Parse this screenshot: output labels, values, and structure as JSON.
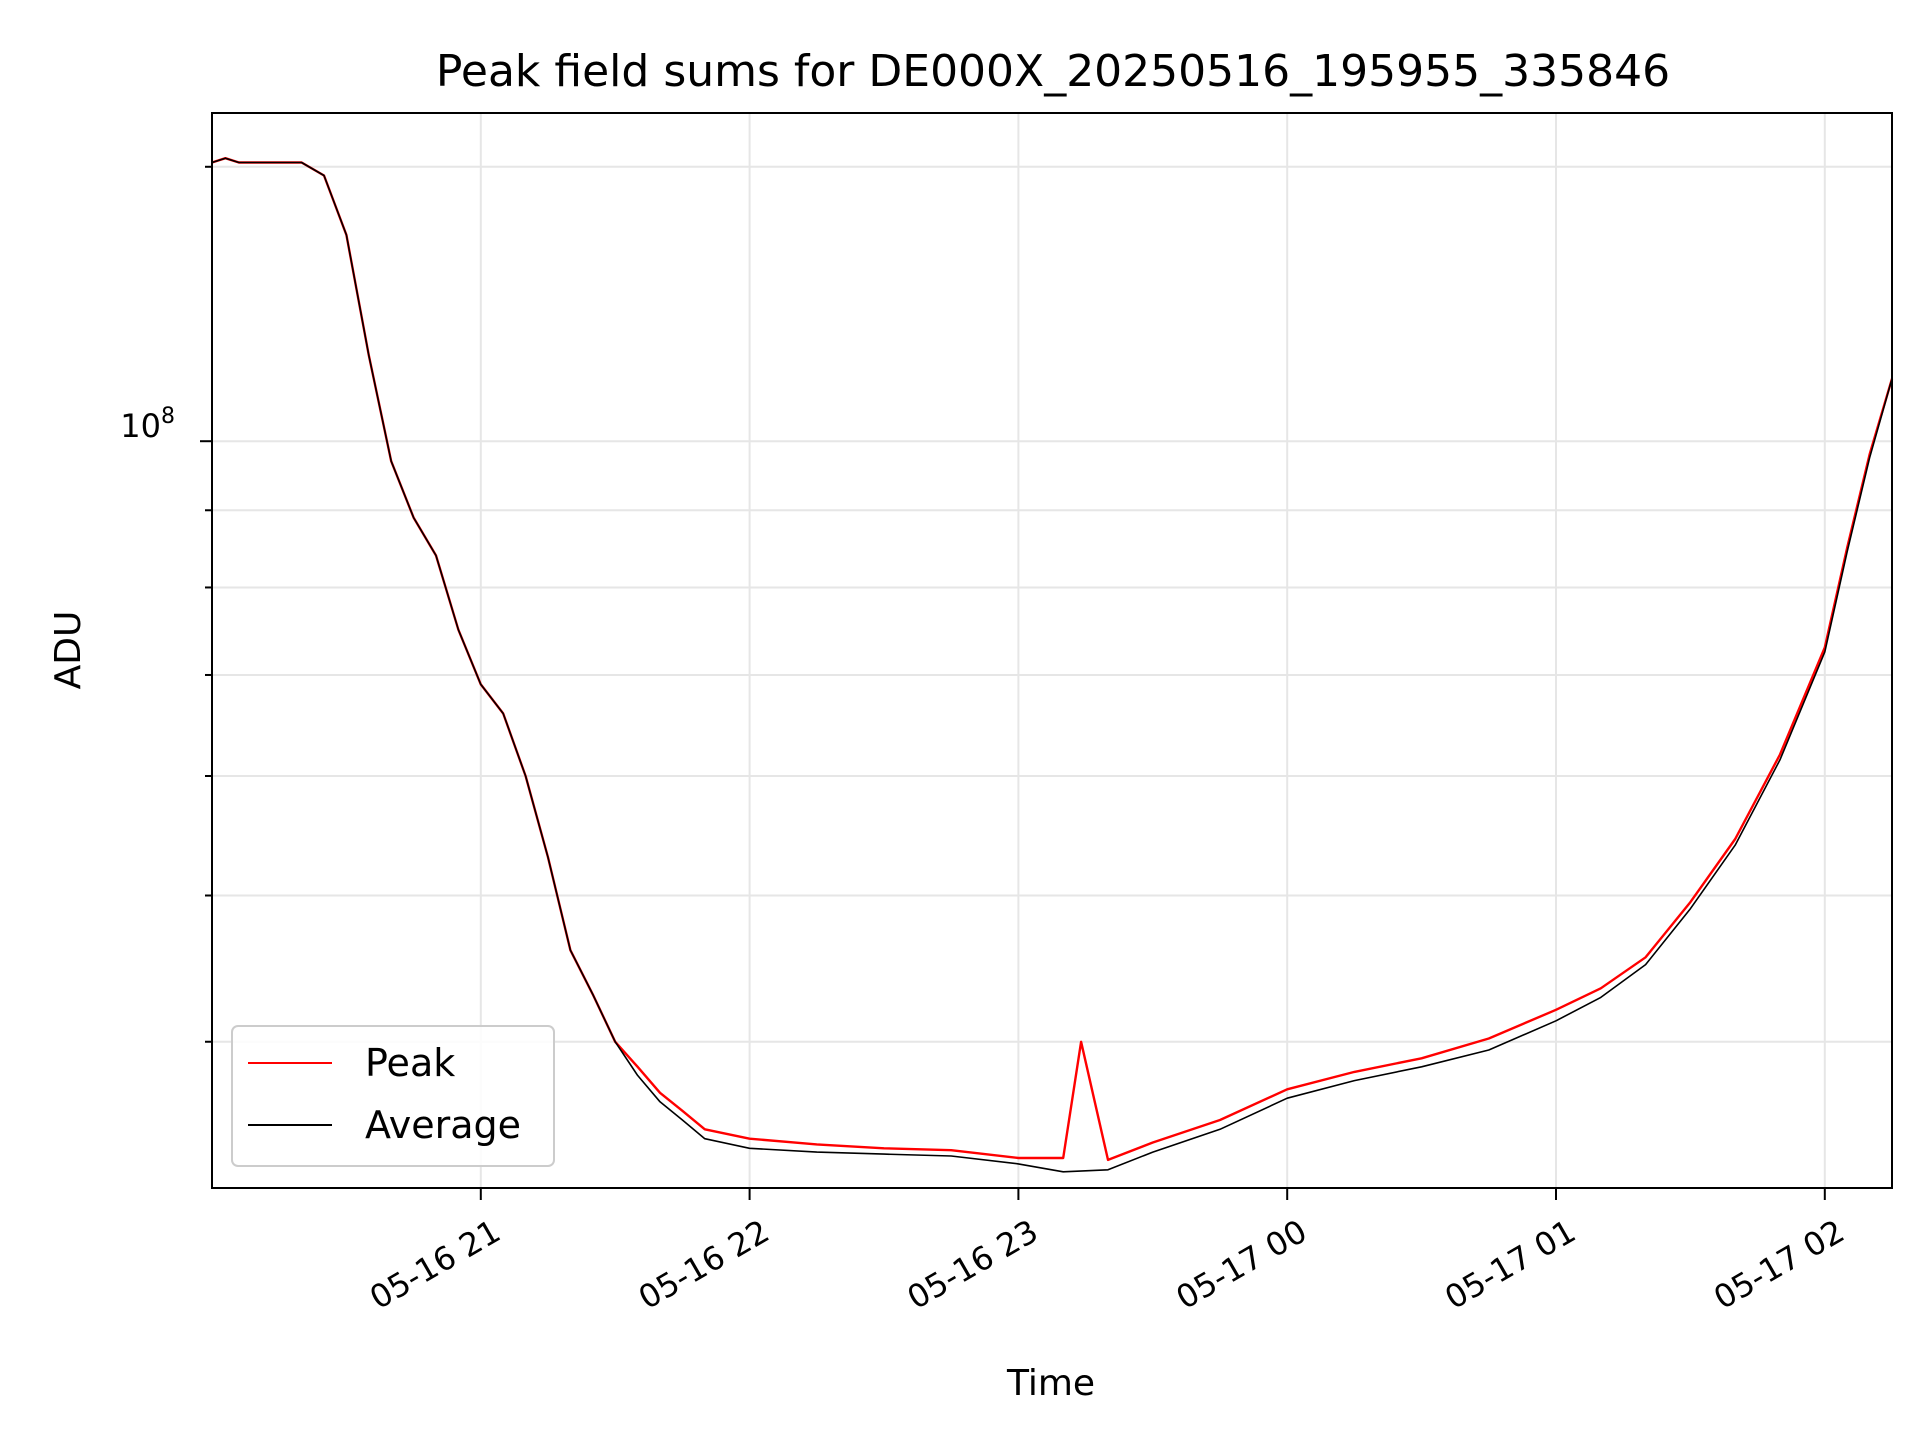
{
  "chart_data": {
    "type": "line",
    "title": "Peak field sums for DE000X_20250516_195955_335846",
    "xlabel": "Time",
    "ylabel": "ADU",
    "yscale": "log",
    "grid": true,
    "legend_position": "lower-left",
    "x_ticks": [
      "2025-05-16 21:00",
      "2025-05-16 22:00",
      "2025-05-16 23:00",
      "2025-05-17 00:00",
      "2025-05-17 01:00",
      "2025-05-17 02:00"
    ],
    "x_tick_labels": [
      "05-16 21",
      "05-16 22",
      "05-16 23",
      "05-17 00",
      "05-17 01",
      "05-17 02"
    ],
    "y_tick_major_label": "10",
    "y_tick_major_exponent": "8",
    "xlim": [
      "2025-05-16 20:00",
      "2025-05-17 02:15"
    ],
    "ylim": [
      32000000,
      165000000
    ],
    "series": [
      {
        "name": "Peak",
        "color": "#ff0000",
        "x": [
          "2025-05-16 20:00",
          "2025-05-16 20:03",
          "2025-05-16 20:06",
          "2025-05-16 20:10",
          "2025-05-16 20:15",
          "2025-05-16 20:20",
          "2025-05-16 20:25",
          "2025-05-16 20:30",
          "2025-05-16 20:35",
          "2025-05-16 20:40",
          "2025-05-16 20:45",
          "2025-05-16 20:50",
          "2025-05-16 20:55",
          "2025-05-16 21:00",
          "2025-05-16 21:05",
          "2025-05-16 21:10",
          "2025-05-16 21:15",
          "2025-05-16 21:20",
          "2025-05-16 21:25",
          "2025-05-16 21:30",
          "2025-05-16 21:35",
          "2025-05-16 21:40",
          "2025-05-16 21:45",
          "2025-05-16 21:50",
          "2025-05-16 22:00",
          "2025-05-16 22:15",
          "2025-05-16 22:30",
          "2025-05-16 22:45",
          "2025-05-16 23:00",
          "2025-05-16 23:10",
          "2025-05-16 23:14",
          "2025-05-16 23:20",
          "2025-05-16 23:30",
          "2025-05-16 23:45",
          "2025-05-17 00:00",
          "2025-05-17 00:15",
          "2025-05-17 00:30",
          "2025-05-17 00:45",
          "2025-05-17 01:00",
          "2025-05-17 01:10",
          "2025-05-17 01:20",
          "2025-05-17 01:30",
          "2025-05-17 01:40",
          "2025-05-17 01:50",
          "2025-05-17 02:00",
          "2025-05-17 02:05",
          "2025-05-17 02:10",
          "2025-05-17 02:15"
        ],
        "y": [
          153000000,
          154000000,
          153000000,
          153000000,
          153000000,
          153000000,
          150000000,
          137000000,
          114000000,
          97000000,
          89000000,
          84000000,
          75000000,
          69000000,
          66000000,
          60000000,
          53000000,
          46000000,
          43000000,
          40000000,
          38500000,
          37000000,
          36000000,
          35000000,
          34500000,
          34200000,
          34000000,
          33900000,
          33500000,
          33500000,
          40000000,
          33400000,
          34300000,
          35500000,
          37200000,
          38200000,
          39000000,
          40200000,
          42000000,
          43400000,
          45500000,
          49500000,
          54500000,
          62000000,
          73000000,
          85000000,
          98000000,
          110000000
        ]
      },
      {
        "name": "Average",
        "color": "#000000",
        "x": [
          "2025-05-16 20:00",
          "2025-05-16 20:03",
          "2025-05-16 20:06",
          "2025-05-16 20:10",
          "2025-05-16 20:15",
          "2025-05-16 20:20",
          "2025-05-16 20:25",
          "2025-05-16 20:30",
          "2025-05-16 20:35",
          "2025-05-16 20:40",
          "2025-05-16 20:45",
          "2025-05-16 20:50",
          "2025-05-16 20:55",
          "2025-05-16 21:00",
          "2025-05-16 21:05",
          "2025-05-16 21:10",
          "2025-05-16 21:15",
          "2025-05-16 21:20",
          "2025-05-16 21:25",
          "2025-05-16 21:30",
          "2025-05-16 21:35",
          "2025-05-16 21:40",
          "2025-05-16 21:45",
          "2025-05-16 21:50",
          "2025-05-16 22:00",
          "2025-05-16 22:15",
          "2025-05-16 22:30",
          "2025-05-16 22:45",
          "2025-05-16 23:00",
          "2025-05-16 23:10",
          "2025-05-16 23:20",
          "2025-05-16 23:30",
          "2025-05-16 23:45",
          "2025-05-17 00:00",
          "2025-05-17 00:15",
          "2025-05-17 00:30",
          "2025-05-17 00:45",
          "2025-05-17 01:00",
          "2025-05-17 01:10",
          "2025-05-17 01:20",
          "2025-05-17 01:30",
          "2025-05-17 01:40",
          "2025-05-17 01:50",
          "2025-05-17 02:00",
          "2025-05-17 02:05",
          "2025-05-17 02:10",
          "2025-05-17 02:15"
        ],
        "y": [
          153000000,
          154000000,
          153000000,
          153000000,
          153000000,
          153000000,
          150000000,
          137000000,
          114000000,
          97000000,
          89000000,
          84000000,
          75000000,
          69000000,
          66000000,
          60000000,
          53000000,
          46000000,
          43000000,
          40000000,
          38000000,
          36500000,
          35500000,
          34500000,
          34000000,
          33800000,
          33700000,
          33600000,
          33200000,
          32800000,
          32900000,
          33800000,
          35000000,
          36700000,
          37700000,
          38500000,
          39500000,
          41300000,
          42800000,
          45000000,
          49000000,
          54000000,
          61500000,
          72500000,
          84500000,
          97500000,
          110000000
        ]
      }
    ]
  }
}
